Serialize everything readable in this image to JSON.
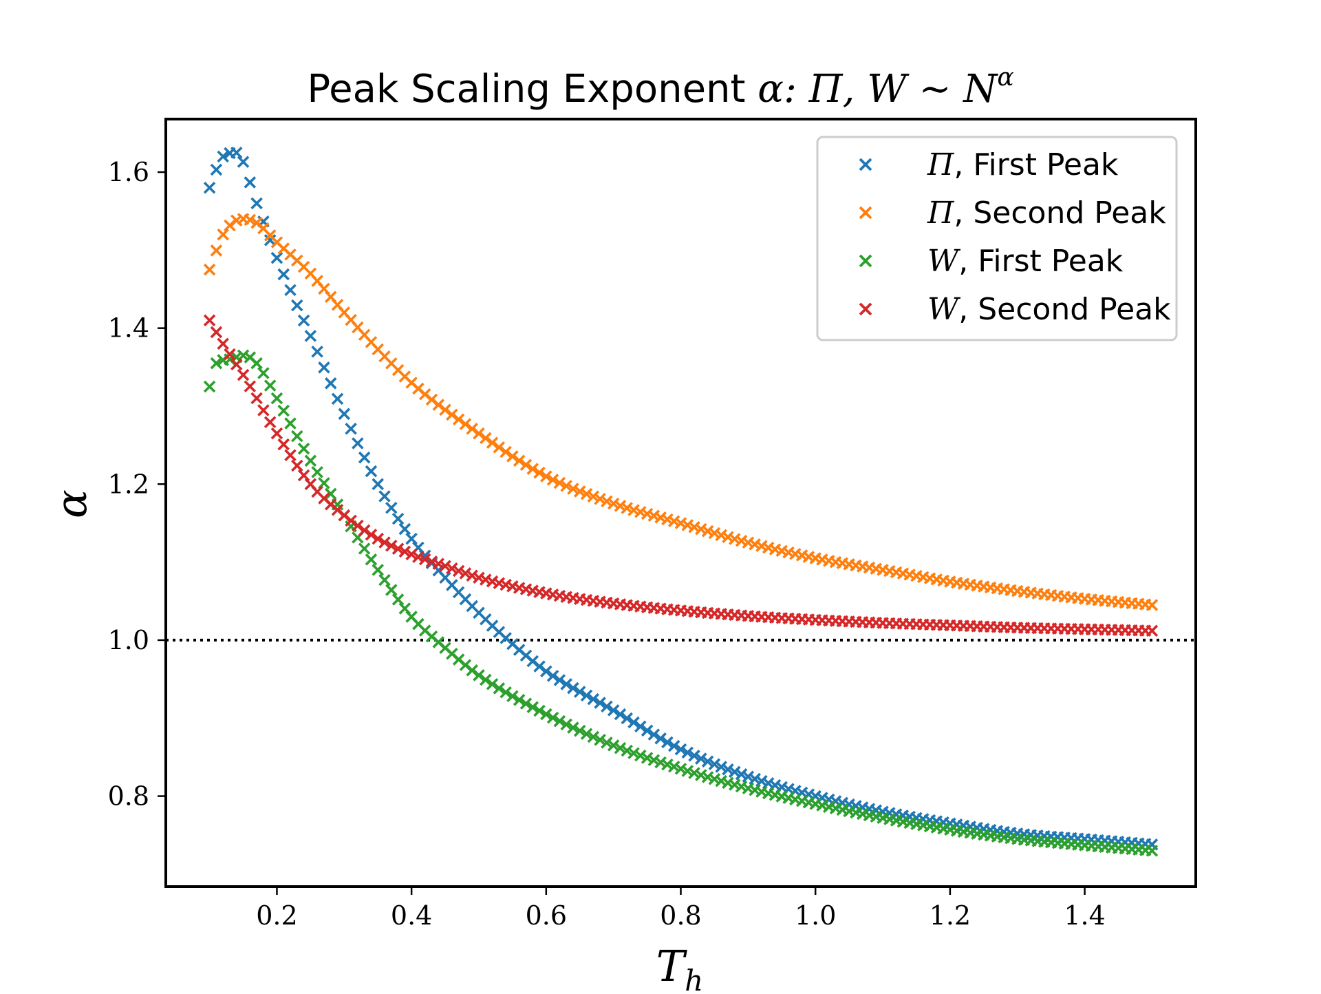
{
  "chart_data": {
    "type": "scatter",
    "title_prefix": "Peak Scaling Exponent ",
    "title_math": "α: Π, W ∼ N",
    "title_sup": "α",
    "xlabel": "T",
    "xlabel_sub": "h",
    "ylabel": "α",
    "xlim": [
      0.035,
      1.565
    ],
    "ylim": [
      0.684,
      1.668
    ],
    "xticks": [
      0.2,
      0.4,
      0.6,
      0.8,
      1.0,
      1.2,
      1.4
    ],
    "xtick_labels": [
      "0.2",
      "0.4",
      "0.6",
      "0.8",
      "1.0",
      "1.2",
      "1.4"
    ],
    "yticks": [
      0.8,
      1.0,
      1.2,
      1.4,
      1.6
    ],
    "ytick_labels": [
      "0.8",
      "1.0",
      "1.2",
      "1.4",
      "1.6"
    ],
    "reference_line": {
      "y": 1.0,
      "style": "dotted",
      "color": "#000000"
    },
    "marker": "x",
    "legend_position": "upper-right",
    "series": [
      {
        "name": "Π, First Peak",
        "legend_math": "Π",
        "legend_text": ", First Peak",
        "color": "#1f77b4",
        "x_start": 0.1,
        "x_end": 1.5,
        "n_points": 141,
        "anchor_x": [
          0.1,
          0.12,
          0.14,
          0.17,
          0.2,
          0.25,
          0.3,
          0.35,
          0.4,
          0.45,
          0.5,
          0.55,
          0.6,
          0.7,
          0.8,
          0.9,
          1.0,
          1.1,
          1.2,
          1.3,
          1.4,
          1.5
        ],
        "anchor_y": [
          1.58,
          1.62,
          1.625,
          1.56,
          1.49,
          1.39,
          1.29,
          1.2,
          1.13,
          1.08,
          1.035,
          0.995,
          0.96,
          0.91,
          0.86,
          0.825,
          0.8,
          0.78,
          0.765,
          0.752,
          0.745,
          0.738
        ]
      },
      {
        "name": "Π, Second Peak",
        "legend_math": "Π",
        "legend_text": ", Second Peak",
        "color": "#ff7f0e",
        "x_start": 0.1,
        "x_end": 1.5,
        "n_points": 141,
        "anchor_x": [
          0.1,
          0.12,
          0.15,
          0.17,
          0.2,
          0.25,
          0.3,
          0.4,
          0.5,
          0.6,
          0.7,
          0.8,
          0.9,
          1.0,
          1.1,
          1.2,
          1.3,
          1.4,
          1.5
        ],
        "anchor_y": [
          1.475,
          1.52,
          1.54,
          1.535,
          1.51,
          1.47,
          1.42,
          1.33,
          1.265,
          1.21,
          1.175,
          1.15,
          1.125,
          1.105,
          1.09,
          1.075,
          1.063,
          1.053,
          1.045
        ]
      },
      {
        "name": "W, First Peak",
        "legend_math": "W",
        "legend_text": ", First Peak",
        "color": "#2ca02c",
        "x_start": 0.1,
        "x_end": 1.5,
        "n_points": 141,
        "anchor_x": [
          0.1,
          0.11,
          0.13,
          0.15,
          0.17,
          0.2,
          0.25,
          0.3,
          0.35,
          0.4,
          0.45,
          0.5,
          0.6,
          0.7,
          0.8,
          0.9,
          1.0,
          1.1,
          1.2,
          1.3,
          1.4,
          1.5
        ],
        "anchor_y": [
          1.325,
          1.355,
          1.36,
          1.365,
          1.355,
          1.31,
          1.23,
          1.16,
          1.09,
          1.03,
          0.99,
          0.955,
          0.905,
          0.865,
          0.835,
          0.81,
          0.79,
          0.772,
          0.757,
          0.745,
          0.737,
          0.73
        ]
      },
      {
        "name": "W, Second Peak",
        "legend_math": "W",
        "legend_text": ", Second Peak",
        "color": "#d62728",
        "x_start": 0.1,
        "x_end": 1.5,
        "n_points": 141,
        "anchor_x": [
          0.1,
          0.12,
          0.15,
          0.2,
          0.25,
          0.3,
          0.35,
          0.4,
          0.45,
          0.5,
          0.6,
          0.7,
          0.8,
          0.9,
          1.0,
          1.1,
          1.2,
          1.3,
          1.4,
          1.5
        ],
        "anchor_y": [
          1.41,
          1.38,
          1.34,
          1.265,
          1.2,
          1.16,
          1.13,
          1.11,
          1.095,
          1.08,
          1.06,
          1.047,
          1.038,
          1.031,
          1.026,
          1.022,
          1.019,
          1.016,
          1.014,
          1.012
        ]
      }
    ]
  }
}
